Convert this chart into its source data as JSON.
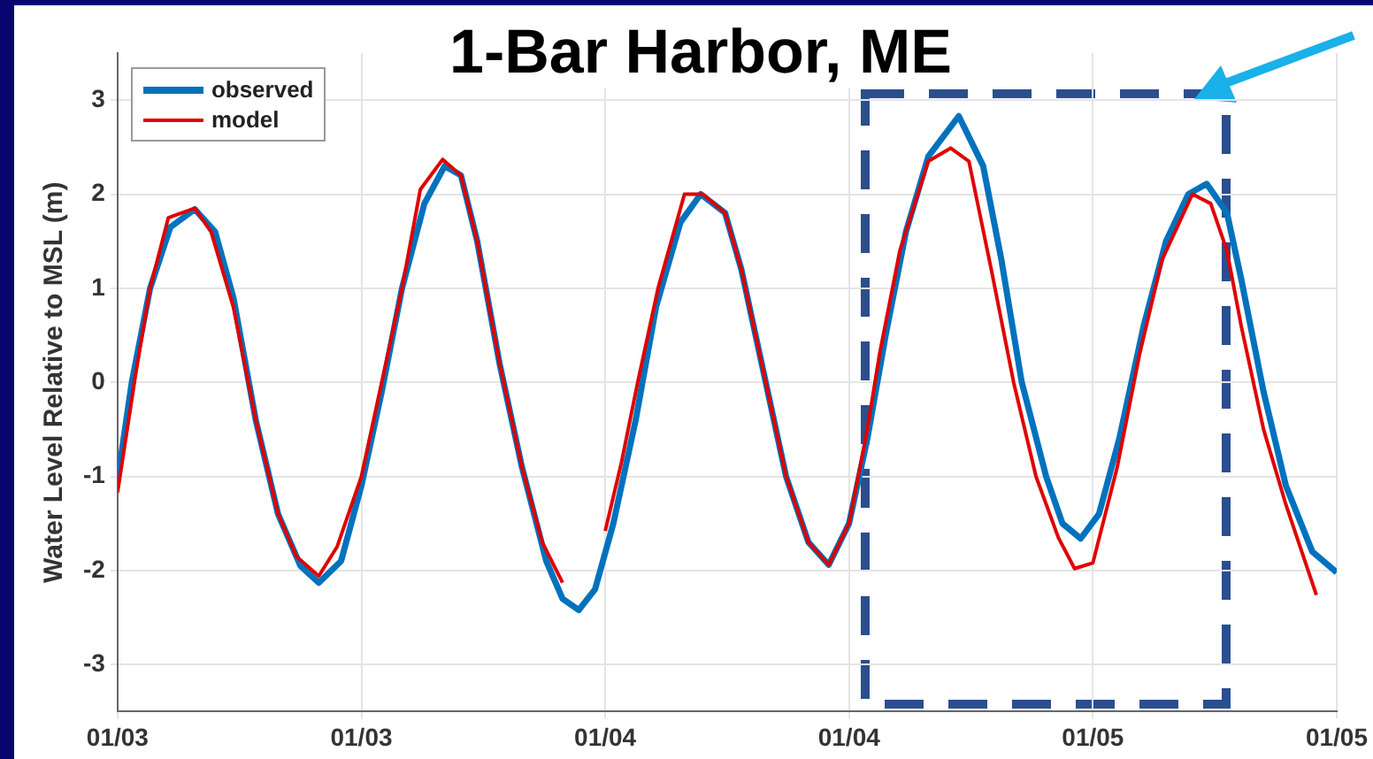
{
  "chart_data": {
    "type": "line",
    "title": "1-Bar Harbor, ME",
    "ylabel": "Water Level Relative to MSL (m)",
    "xlim": [
      "--01-03T00:00",
      "--01-05T12:00"
    ],
    "ylim": [
      -3.5,
      3.5
    ],
    "xticks": [
      {
        "value": "--01-03T00:00",
        "label": "01/03"
      },
      {
        "value": "--01-03T12:00",
        "label": "01/03"
      },
      {
        "value": "--01-04T00:00",
        "label": "01/04"
      },
      {
        "value": "--01-04T12:00",
        "label": "01/04"
      },
      {
        "value": "--01-05T00:00",
        "label": "01/05"
      },
      {
        "value": "--01-05T12:00",
        "label": "01/05"
      }
    ],
    "yticks": [
      -3,
      -2,
      -1,
      0,
      1,
      2,
      3
    ],
    "grid": true,
    "legend": "top left",
    "marker": "none",
    "line_style": "solid",
    "series": [
      {
        "name": "observed",
        "color": "#0072bd",
        "x": [
          "--01-03T00:00",
          "--01-03T00:42",
          "--01-03T01:36",
          "--01-03T02:36",
          "--01-03T03:48",
          "--01-03T04:48",
          "--01-03T05:42",
          "--01-03T06:48",
          "--01-03T07:54",
          "--01-03T09:00",
          "--01-03T09:54",
          "--01-03T11:00",
          "--01-03T12:00",
          "--01-03T13:00",
          "--01-03T14:00",
          "--01-03T15:06",
          "--01-03T16:06",
          "--01-03T16:54",
          "--01-03T17:42",
          "--01-03T18:48",
          "--01-03T19:54",
          "--01-03T21:06",
          "--01-03T21:54",
          "--01-03T22:42",
          "--01-03T23:30",
          "--01-04T00:24",
          "--01-04T01:30",
          "--01-04T02:30",
          "--01-04T03:42",
          "--01-04T04:42",
          "--01-04T05:54",
          "--01-04T06:42",
          "--01-04T07:48",
          "--01-04T08:54",
          "--01-04T10:00",
          "--01-04T11:00",
          "--01-04T12:00",
          "--01-04T12:54",
          "--01-04T13:48",
          "--01-04T14:48",
          "--01-04T15:54",
          "--01-04T17:24",
          "--01-04T18:36",
          "--01-04T19:30",
          "--01-04T20:30",
          "--01-04T21:42",
          "--01-04T22:30",
          "--01-04T23:24",
          "--01-05T00:18",
          "--01-05T01:18",
          "--01-05T02:30",
          "--01-05T03:36",
          "--01-05T04:42",
          "--01-05T05:36",
          "--01-05T06:36",
          "--01-05T07:18",
          "--01-05T08:24",
          "--01-05T09:30",
          "--01-05T10:48",
          "--01-05T12:00"
        ],
        "values": [
          -1.04,
          0.0,
          1.0,
          1.65,
          1.84,
          1.6,
          0.9,
          -0.4,
          -1.4,
          -1.95,
          -2.13,
          -1.9,
          -1.1,
          -0.1,
          1.0,
          1.9,
          2.3,
          2.2,
          1.5,
          0.2,
          -0.9,
          -1.9,
          -2.3,
          -2.42,
          -2.2,
          -1.5,
          -0.4,
          0.8,
          1.7,
          2.0,
          1.8,
          1.2,
          0.1,
          -1.0,
          -1.7,
          -1.94,
          -1.5,
          -0.6,
          0.5,
          1.6,
          2.4,
          2.83,
          2.3,
          1.3,
          0.0,
          -1.0,
          -1.5,
          -1.66,
          -1.4,
          -0.6,
          0.6,
          1.5,
          2.0,
          2.11,
          1.8,
          1.1,
          -0.1,
          -1.1,
          -1.8,
          -2.02
        ]
      },
      {
        "name": "model",
        "color": "#e00000",
        "x": [
          "--01-03T00:00",
          "--01-03T00:54",
          "--01-03T01:36",
          "--01-03T02:30",
          "--01-03T03:48",
          "--01-03T04:36",
          "--01-03T05:42",
          "--01-03T06:48",
          "--01-03T07:54",
          "--01-03T08:48",
          "--01-03T09:54",
          "--01-03T10:48",
          "--01-03T12:00",
          "--01-03T13:00",
          "--01-03T14:00",
          "--01-03T14:54",
          "--01-03T16:00",
          "--01-03T16:54",
          "--01-03T17:42",
          "--01-03T18:48",
          "--01-03T19:54",
          "--01-03T20:54",
          "--01-03T21:54",
          "--01-03T23:00",
          "--01-04T00:00",
          "--01-04T00:48",
          "--01-04T01:36",
          "--01-04T02:36",
          "--01-04T03:54",
          "--01-04T04:48",
          "--01-04T05:54",
          "--01-04T06:42",
          "--01-04T07:48",
          "--01-04T08:54",
          "--01-04T10:00",
          "--01-04T11:00",
          "--01-04T12:00",
          "--01-04T12:54",
          "--01-04T13:30",
          "--01-04T14:30",
          "--01-04T15:54",
          "--01-04T17:00",
          "--01-04T17:54",
          "--01-04T19:00",
          "--01-04T20:06",
          "--01-04T21:12",
          "--01-04T22:18",
          "--01-04T23:06",
          "--01-05T00:00",
          "--01-05T01:12",
          "--01-05T02:18",
          "--01-05T03:24",
          "--01-05T04:54",
          "--01-05T05:48",
          "--01-05T06:36",
          "--01-05T07:18",
          "--01-05T08:24",
          "--01-05T09:30",
          "--01-05T11:00"
        ],
        "values": [
          -1.17,
          0.1,
          1.0,
          1.75,
          1.85,
          1.6,
          0.8,
          -0.4,
          -1.4,
          -1.85,
          -2.06,
          -1.75,
          -1.0,
          0.0,
          1.0,
          2.05,
          2.37,
          2.2,
          1.5,
          0.2,
          -0.9,
          -1.7,
          -2.13,
          null,
          -1.58,
          -0.85,
          0.0,
          1.0,
          2.0,
          2.0,
          1.8,
          1.2,
          0.1,
          -1.0,
          -1.7,
          -1.94,
          -1.5,
          -0.5,
          0.3,
          1.4,
          2.35,
          2.49,
          2.35,
          1.2,
          0.0,
          -1.0,
          -1.65,
          -1.98,
          -1.92,
          -0.9,
          0.3,
          1.3,
          2.0,
          1.9,
          1.4,
          0.6,
          -0.5,
          -1.3,
          -2.26
        ]
      }
    ]
  }
}
